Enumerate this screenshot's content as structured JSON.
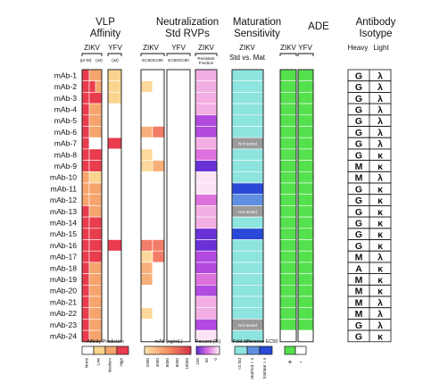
{
  "headers": {
    "vlp": [
      "VLP",
      "Affinity"
    ],
    "neut": [
      "Neutralization",
      "Std RVPs"
    ],
    "mat": [
      "Maturation",
      "Sensitivity"
    ],
    "ade": "ADE",
    "iso": [
      "Antibody",
      "Isotype"
    ]
  },
  "subheaders": {
    "vlp_zikv": "ZIKV",
    "vlp_yfv": "YFV",
    "vlp_prm": "(pr-M)",
    "vlp_wt1": "(wt)",
    "vlp_wt2": "(wt)",
    "neut_zikv": "ZIKV",
    "neut_yfv": "YFV",
    "ec50": "EC50",
    "ec90": "EC90",
    "neut_zikv2": "ZIKV",
    "resist1": "Resistant",
    "resist2": "Fraction",
    "mat_zikv": "ZIKV",
    "mat_std": "Std vs. Mat",
    "ade_zikv": "ZIKV",
    "ade_yfv": "YFV",
    "heavy": "Heavy",
    "light": "Light"
  },
  "rows": [
    "mAb-1",
    "mAb-2",
    "mAb-3",
    "mAb-4",
    "mAb-5",
    "mAb-6",
    "mAb-7",
    "mAb-8",
    "mAb-9",
    "mAb-10",
    "mAb-11",
    "mAb-12",
    "mAb-13",
    "mAb-14",
    "mAb-15",
    "mAb-16",
    "mAb-17",
    "mAb-18",
    "mAb-19",
    "mAb-20",
    "mAb-21",
    "mAb-22",
    "mAb-23",
    "mAb-24"
  ],
  "not_tested": "Not tested",
  "colors": {
    "none": "#ffffff",
    "aff_low": "#fad48f",
    "aff_med": "#f6a46d",
    "aff_high": "#e93c4d",
    "aff_top": "#e0183c",
    "neut": [
      "#fdd89b",
      "#f8b07a",
      "#f17c67",
      "#e5525a",
      "#d8314d"
    ],
    "resist": [
      "#fde4f4",
      "#f3aee3",
      "#df71de",
      "#b24ae0",
      "#6a31d6"
    ],
    "mat_aqua": "#8ee4df",
    "mat_mid": "#5f8fe0",
    "mat_dark": "#2a49d8",
    "mat_nt": "#9a9a9a",
    "ade": "#55e04e",
    "grid": "#dddddd"
  },
  "vlp_zikv": [
    2,
    3,
    3,
    2,
    2,
    2,
    0,
    3,
    3,
    1,
    2,
    2,
    2,
    3,
    3,
    3,
    3,
    2,
    2,
    2,
    2,
    2,
    2,
    2
  ],
  "vlp_prm": [
    3,
    3,
    3,
    3,
    3,
    3,
    3,
    3,
    3,
    2,
    2,
    2,
    3,
    3,
    3,
    3,
    3,
    3,
    3,
    3,
    3,
    3,
    3,
    3
  ],
  "vlp_wt": [
    0,
    2,
    0,
    0,
    0,
    0,
    0,
    0,
    0,
    0,
    0,
    0,
    0,
    0,
    0,
    0,
    0,
    0,
    0,
    0,
    0,
    0,
    0,
    0
  ],
  "vlp_yfv": [
    1,
    1,
    1,
    0,
    0,
    0,
    3,
    0,
    0,
    0,
    0,
    0,
    0,
    0,
    0,
    3,
    0,
    0,
    0,
    0,
    0,
    0,
    0,
    0
  ],
  "neut_ec50": [
    0,
    1,
    0,
    0,
    0,
    2,
    0,
    1,
    1,
    0,
    0,
    0,
    0,
    0,
    0,
    3,
    1,
    2,
    2,
    0,
    0,
    1,
    0,
    0
  ],
  "neut_ec90": [
    0,
    0,
    0,
    0,
    0,
    3,
    0,
    0,
    2,
    0,
    0,
    0,
    0,
    0,
    0,
    3,
    3,
    0,
    0,
    0,
    0,
    0,
    0,
    0
  ],
  "neut_resist": [
    1,
    1,
    1,
    1,
    3,
    3,
    1,
    2,
    4,
    0,
    0,
    2,
    1,
    1,
    4,
    4,
    3,
    3,
    2,
    3,
    1,
    1,
    3,
    0
  ],
  "mat": [
    "a",
    "a",
    "a",
    "a",
    "a",
    "a",
    "nt",
    "a",
    "a",
    "a",
    "d",
    "m",
    "nt",
    "a",
    "d",
    "a",
    "a",
    "a",
    "a",
    "a",
    "a",
    "a",
    "nt",
    "a"
  ],
  "ade_zikv": [
    1,
    1,
    1,
    1,
    1,
    1,
    1,
    1,
    1,
    1,
    1,
    1,
    1,
    1,
    1,
    1,
    1,
    1,
    1,
    1,
    1,
    1,
    1,
    0
  ],
  "ade_yfv": [
    1,
    1,
    1,
    1,
    1,
    1,
    1,
    1,
    1,
    1,
    1,
    1,
    1,
    1,
    1,
    1,
    1,
    1,
    1,
    1,
    1,
    1,
    1,
    0
  ],
  "iso_heavy": [
    "G",
    "G",
    "G",
    "G",
    "G",
    "G",
    "G",
    "G",
    "M",
    "M",
    "G",
    "G",
    "G",
    "G",
    "G",
    "G",
    "M",
    "A",
    "M",
    "M",
    "M",
    "M",
    "G",
    "G"
  ],
  "iso_light": [
    "λ",
    "λ",
    "λ",
    "λ",
    "λ",
    "λ",
    "λ",
    "κ",
    "κ",
    "λ",
    "κ",
    "κ",
    "κ",
    "κ",
    "κ",
    "κ",
    "λ",
    "κ",
    "κ",
    "κ",
    "λ",
    "λ",
    "λ",
    "κ"
  ],
  "legends": {
    "affinity": {
      "title": "Affinity Prediction",
      "labels": [
        "None",
        "Low",
        "Medium",
        "High"
      ],
      "colors": [
        "#ffffff",
        "#fad48f",
        "#f6a46d",
        "#e93c4d"
      ]
    },
    "neut": {
      "title": "mAb (ng/mL)",
      "labels": [
        "2000",
        "4000",
        "6000",
        "8000",
        "10000"
      ]
    },
    "resist": {
      "title": "Percent (%)",
      "labels": [
        "0",
        "50",
        "100"
      ]
    },
    "mat": {
      "title": "Fold difference EC50",
      "labels": [
        "<4 Std",
        "Mat/Std < 4",
        "Std/Mat > 4"
      ],
      "colors": [
        "#8ee4df",
        "#5f8fe0",
        "#2a49d8"
      ]
    },
    "ade": {
      "labels": [
        "+",
        "-"
      ],
      "colors": [
        "#55e04e",
        "#ffffff"
      ]
    }
  }
}
